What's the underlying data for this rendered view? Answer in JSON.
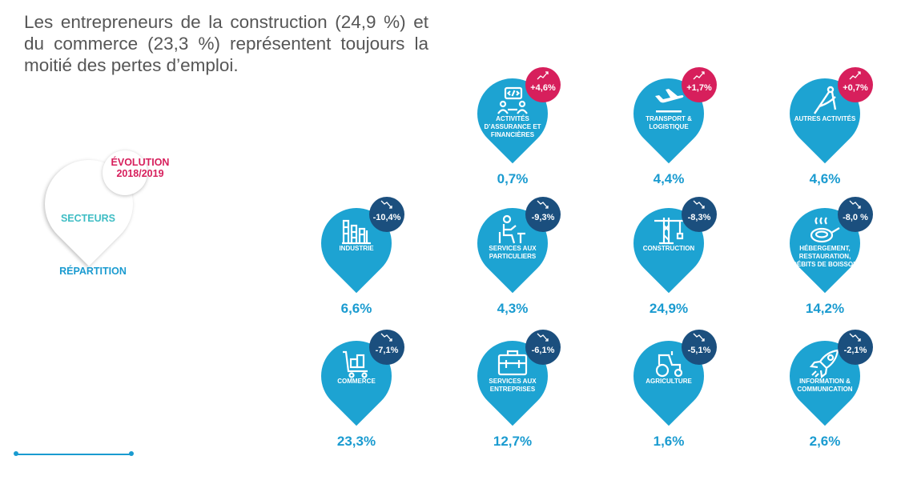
{
  "intro_text": "Les entrepreneurs de la construction (24,9 %) et du commerce (23,3 %) représentent toujours la moitié des pertes d’emploi.",
  "legend": {
    "evolution_line1": "ÉVOLUTION",
    "evolution_line2": "2018/2019",
    "sectors_label": "SECTEURS",
    "share_label": "RÉPARTITION"
  },
  "colors": {
    "pin": "#1da3d2",
    "increase": "#d71f5c",
    "decrease": "#1b4f7e",
    "text_primary": "#1a9bd0",
    "legend_sectors": "#3ebdc4"
  },
  "sectors": [
    {
      "name": "Activités d’assurance et financières",
      "evolution": "+4,6%",
      "direction": "up",
      "share": "0,7%",
      "icon": "finance-icon"
    },
    {
      "name": "Transport & logistique",
      "evolution": "+1,7%",
      "direction": "up",
      "share": "4,4%",
      "icon": "plane-icon"
    },
    {
      "name": "Autres activités",
      "evolution": "+0,7%",
      "direction": "up",
      "share": "4,6%",
      "icon": "compass-icon"
    },
    {
      "name": "Industrie",
      "evolution": "-10,4%",
      "direction": "down",
      "share": "6,6%",
      "icon": "factory-icon"
    },
    {
      "name": "Services aux particuliers",
      "evolution": "-9,3%",
      "direction": "down",
      "share": "4,3%",
      "icon": "person-desk-icon"
    },
    {
      "name": "Construction",
      "evolution": "-8,3%",
      "direction": "down",
      "share": "24,9%",
      "icon": "crane-icon"
    },
    {
      "name": "Hébergement, restauration, débits de boisson",
      "evolution": "-8,0 %",
      "direction": "down",
      "share": "14,2%",
      "icon": "pan-icon"
    },
    {
      "name": "Commerce",
      "evolution": "-7,1%",
      "direction": "down",
      "share": "23,3%",
      "icon": "cart-icon"
    },
    {
      "name": "Services aux entreprises",
      "evolution": "-6,1%",
      "direction": "down",
      "share": "12,7%",
      "icon": "toolbox-icon"
    },
    {
      "name": "Agriculture",
      "evolution": "-5,1%",
      "direction": "down",
      "share": "1,6%",
      "icon": "tractor-icon"
    },
    {
      "name": "Information & communication",
      "evolution": "-2,1%",
      "direction": "down",
      "share": "2,6%",
      "icon": "rocket-icon"
    }
  ]
}
